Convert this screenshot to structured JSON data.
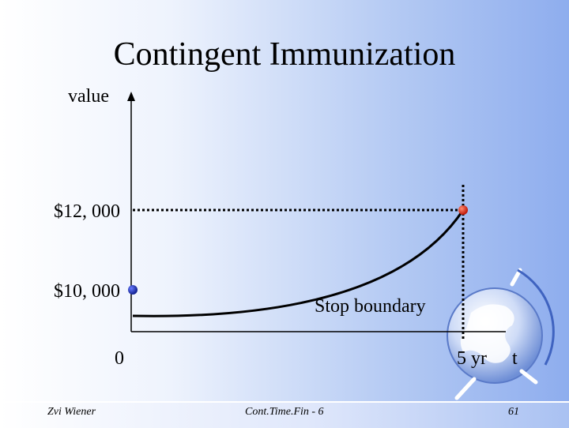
{
  "slide": {
    "title": "Contingent Immunization",
    "footer_left": "Zvi Wiener",
    "footer_center": "Cont.Time.Fin - 6",
    "page_number": "61"
  },
  "chart": {
    "y_axis_label": "value",
    "x_axis_label": "t",
    "y_label_high": "$12, 000",
    "y_label_low": "$10, 000",
    "x_label_origin": "0",
    "x_label_end": "5 yr",
    "curve_label": "Stop boundary"
  },
  "colors": {
    "background_right": "#8eadee",
    "start_point": "#1a2db0",
    "end_point": "#e03020",
    "curve": "#000000"
  },
  "icons": {
    "logo": "globe-icon"
  }
}
